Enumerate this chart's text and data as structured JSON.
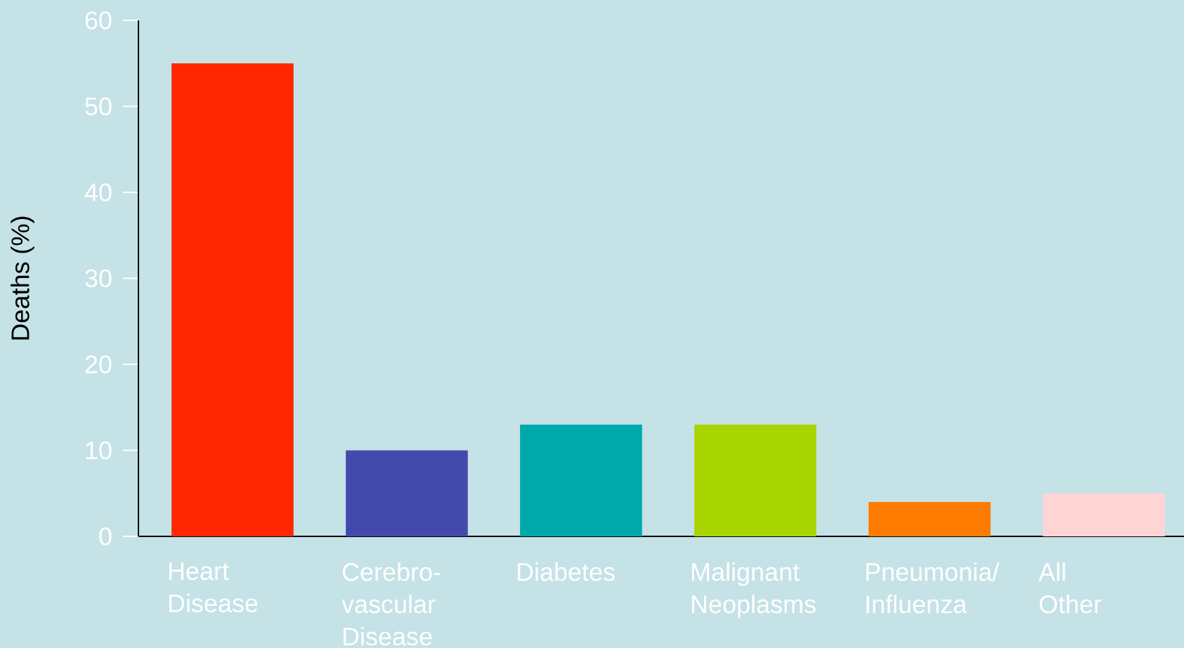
{
  "chart_data": {
    "type": "bar",
    "ylabel": "Deaths (%)",
    "categories": [
      "Heart Disease",
      "Cerebro-vascular Disease",
      "Diabetes",
      "Malignant Neoplasms",
      "Pneumonia/ Influenza",
      "All Other"
    ],
    "values": [
      55,
      10,
      13,
      13,
      4,
      5
    ],
    "colors": [
      "#ff2600",
      "#444aab",
      "#00a9a9",
      "#a8d400",
      "#ff7b00",
      "#ffd4d4"
    ],
    "ylim": [
      0,
      60
    ],
    "yticks": [
      0,
      10,
      20,
      30,
      40,
      50,
      60
    ],
    "grid": false
  }
}
